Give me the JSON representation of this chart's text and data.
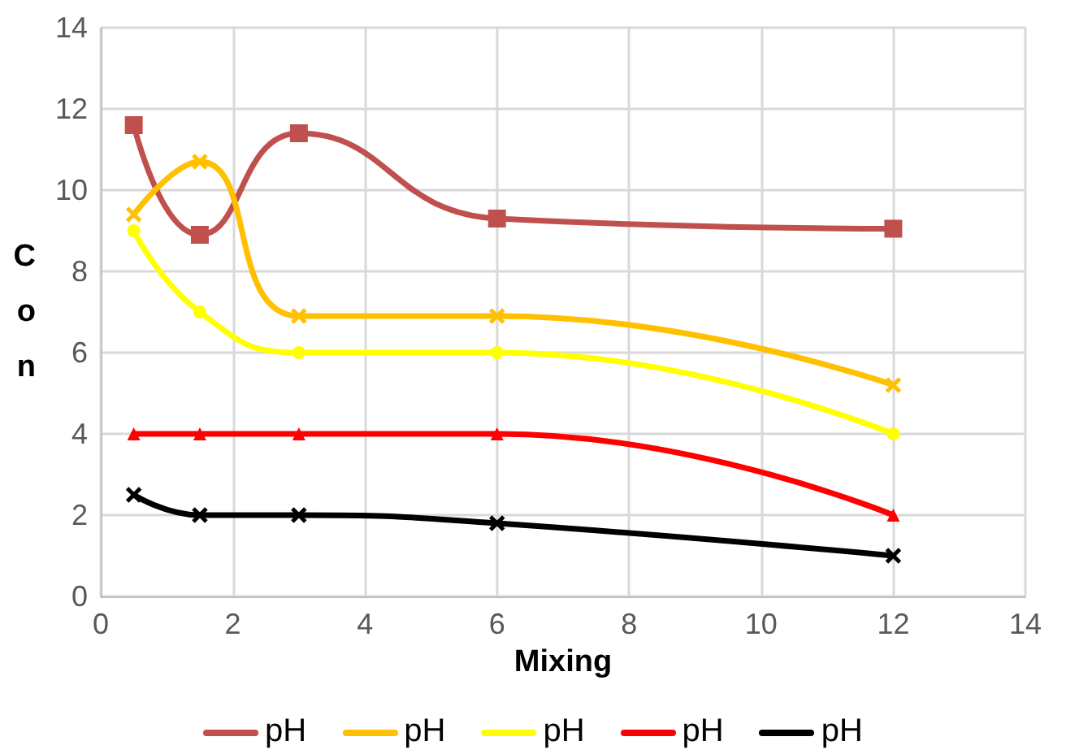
{
  "chart_data": {
    "type": "line",
    "xlabel": "Mixing",
    "ylabel": "Con",
    "x": [
      0.5,
      1.5,
      3,
      6,
      12
    ],
    "xlim": [
      0,
      14
    ],
    "xticks": [
      0,
      2,
      4,
      6,
      8,
      10,
      12,
      14
    ],
    "ylim": [
      0,
      14
    ],
    "yticks": [
      0,
      2,
      4,
      6,
      8,
      10,
      12,
      14
    ],
    "grid": true,
    "legend": "bottom",
    "line_style": "solid",
    "series": [
      {
        "name": "pH",
        "color": "#c0504d",
        "marker": "square",
        "values": [
          11.6,
          8.9,
          11.4,
          9.3,
          9.05
        ]
      },
      {
        "name": "pH",
        "color": "#ffc000",
        "marker": "cross",
        "values": [
          9.4,
          10.7,
          6.9,
          6.9,
          5.2
        ]
      },
      {
        "name": "pH",
        "color": "#ffff00",
        "marker": "circle",
        "values": [
          9.0,
          7.0,
          6.0,
          6.0,
          4.0
        ]
      },
      {
        "name": "pH",
        "color": "#ff0000",
        "marker": "triangle",
        "values": [
          4,
          4,
          4,
          4,
          2
        ]
      },
      {
        "name": "pH",
        "color": "#000000",
        "marker": "cross",
        "values": [
          2.5,
          2.0,
          2.0,
          1.8,
          1.0
        ]
      }
    ]
  }
}
